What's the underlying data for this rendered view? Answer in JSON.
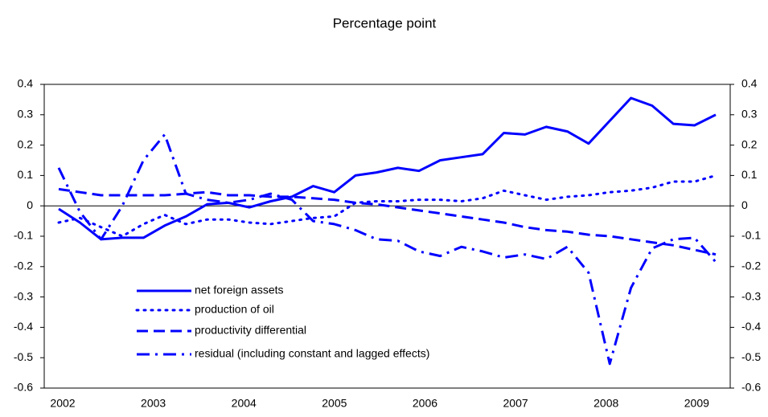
{
  "chart_data": {
    "type": "line",
    "title": "Percentage point",
    "categories": [
      "2002",
      null,
      null,
      null,
      "2003",
      null,
      null,
      null,
      "2004",
      null,
      null,
      null,
      "2005",
      null,
      null,
      null,
      "2006",
      null,
      null,
      null,
      "2007",
      null,
      null,
      null,
      "2008",
      null,
      null,
      null,
      "2009",
      null,
      null,
      null
    ],
    "series": [
      {
        "name": "net foreign assets",
        "color": "#0000ff",
        "style": "solid",
        "values": [
          -0.01,
          -0.055,
          -0.11,
          -0.105,
          -0.105,
          -0.065,
          -0.035,
          0.005,
          0.01,
          -0.005,
          0.015,
          0.03,
          0.065,
          0.045,
          0.1,
          0.11,
          0.125,
          0.115,
          0.15,
          0.16,
          0.17,
          0.24,
          0.235,
          0.26,
          0.245,
          0.205,
          0.28,
          0.355,
          0.33,
          0.27,
          0.265,
          0.3
        ]
      },
      {
        "name": "production of oil",
        "color": "#0000ff",
        "style": "dotted",
        "values": [
          -0.055,
          -0.04,
          -0.07,
          -0.1,
          -0.06,
          -0.03,
          -0.06,
          -0.045,
          -0.045,
          -0.055,
          -0.06,
          -0.05,
          -0.04,
          -0.035,
          0.01,
          0.015,
          0.015,
          0.02,
          0.02,
          0.015,
          0.025,
          0.05,
          0.035,
          0.02,
          0.03,
          0.035,
          0.045,
          0.05,
          0.06,
          0.08,
          0.08,
          0.1
        ]
      },
      {
        "name": "productivity differential",
        "color": "#0000ff",
        "style": "dashed",
        "values": [
          0.055,
          0.045,
          0.035,
          0.035,
          0.035,
          0.035,
          0.04,
          0.045,
          0.035,
          0.035,
          0.03,
          0.03,
          0.025,
          0.02,
          0.01,
          0.005,
          -0.005,
          -0.015,
          -0.025,
          -0.035,
          -0.045,
          -0.055,
          -0.07,
          -0.08,
          -0.085,
          -0.095,
          -0.1,
          -0.11,
          -0.12,
          -0.13,
          -0.145,
          -0.16
        ]
      },
      {
        "name": "residual (including constant and lagged effects)",
        "color": "#0000ff",
        "style": "dashdot",
        "values": [
          0.125,
          -0.02,
          -0.11,
          0.0,
          0.15,
          0.235,
          0.04,
          0.02,
          0.01,
          0.02,
          0.04,
          0.02,
          -0.05,
          -0.06,
          -0.08,
          -0.11,
          -0.115,
          -0.15,
          -0.165,
          -0.135,
          -0.15,
          -0.17,
          -0.16,
          -0.175,
          -0.135,
          -0.22,
          -0.52,
          -0.27,
          -0.14,
          -0.11,
          -0.105,
          -0.185
        ]
      }
    ],
    "ylim": [
      -0.6,
      0.4
    ],
    "yticks": [
      -0.6,
      -0.5,
      -0.4,
      -0.3,
      -0.2,
      -0.1,
      0,
      0.1,
      0.2,
      0.3,
      0.4
    ],
    "y2lim": [
      -0.6,
      0.4
    ],
    "y2ticks": [
      -0.6,
      -0.5,
      -0.4,
      -0.3,
      -0.2,
      -0.1,
      0,
      0.1,
      0.2,
      0.3,
      0.4
    ]
  }
}
